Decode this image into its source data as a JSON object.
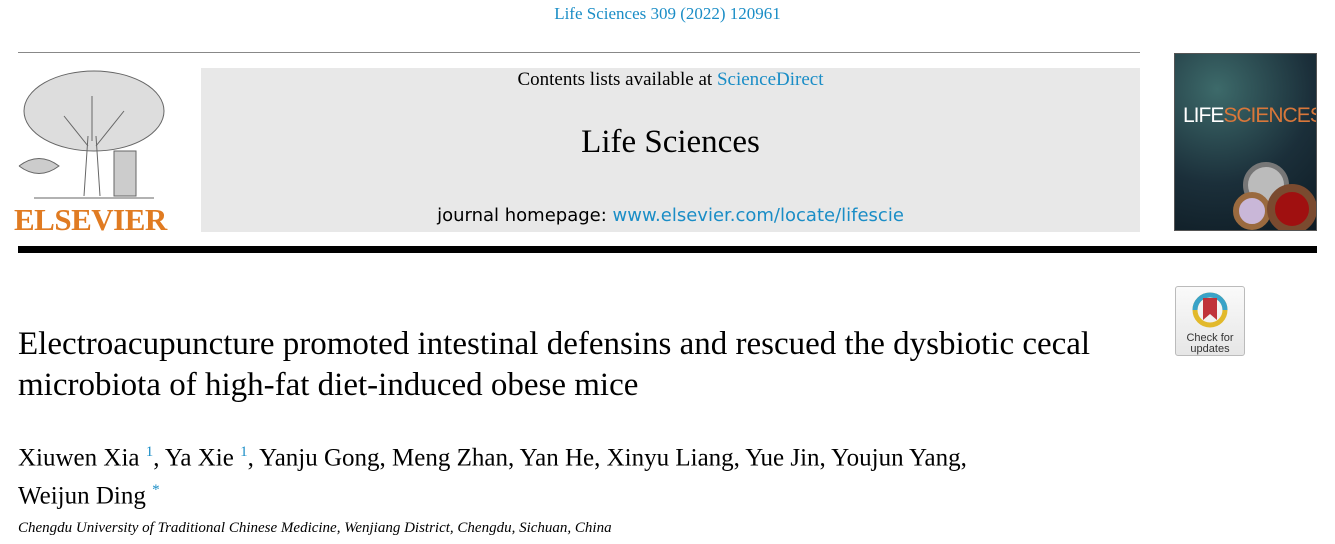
{
  "journal_ref": "Life Sciences 309 (2022) 120961",
  "header": {
    "contents_prefix": "Contents lists available at ",
    "sciencedirect": "ScienceDirect",
    "journal_title": "Life Sciences",
    "homepage_prefix": "journal homepage: ",
    "homepage_url": "www.elsevier.com/locate/lifescie"
  },
  "publisher_logo": "ELSEVIER",
  "cover": {
    "life": "LIFE",
    "sciences": "SCIENCES"
  },
  "crossmark": {
    "line1": "Check for",
    "line2": "updates"
  },
  "article": {
    "title": "Electroacupuncture promoted intestinal defensins and rescued the dysbiotic cecal microbiota of high-fat diet-induced obese mice",
    "authors": [
      {
        "name": "Xiuwen Xia",
        "mark": "1"
      },
      {
        "name": "Ya Xie",
        "mark": "1"
      },
      {
        "name": "Yanju Gong, Meng Zhan, Yan He, Xinyu Liang, Yue Jin, Youjun Yang,"
      },
      {
        "name": "Weijun Ding",
        "mark": "*"
      }
    ],
    "affiliation": "Chengdu University of Traditional Chinese Medicine, Wenjiang District, Chengdu, Sichuan, China"
  }
}
